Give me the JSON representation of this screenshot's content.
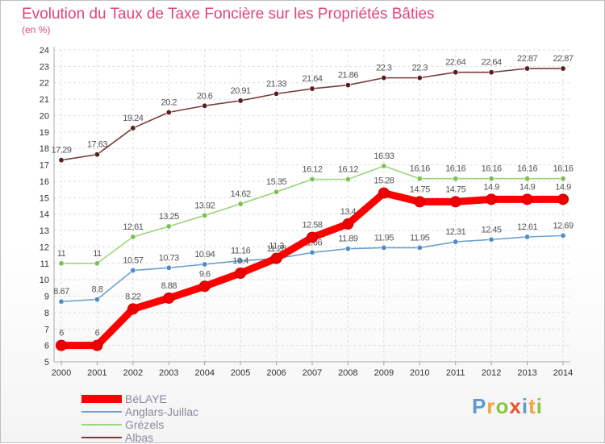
{
  "chart_data": {
    "type": "line",
    "title": "Evolution du Taux de Taxe Foncière sur les Propriétés Bâties",
    "subtitle": "(en %)",
    "ylim": [
      5,
      24
    ],
    "yticks": [
      "5",
      "6",
      "7",
      "8",
      "9",
      "10",
      "11",
      "12",
      "13",
      "14",
      "15",
      "16",
      "17",
      "18",
      "19",
      "20",
      "21",
      "22",
      "23",
      "24"
    ],
    "categories": [
      "2000",
      "2001",
      "2002",
      "2003",
      "2004",
      "2005",
      "2006",
      "2007",
      "2008",
      "2009",
      "2010",
      "2011",
      "2012",
      "2013",
      "2014"
    ],
    "grid": true,
    "legend_position": "bottom-left",
    "series": [
      {
        "name": "Albas",
        "color": "#7a3b3b",
        "marker": "#5a1e1e",
        "values": [
          17.29,
          17.63,
          19.24,
          20.2,
          20.6,
          20.91,
          21.33,
          21.64,
          21.86,
          22.3,
          22.3,
          22.64,
          22.64,
          22.87,
          22.87
        ],
        "labels": [
          "17.29",
          "17.63",
          "19.24",
          "20.2",
          "20.6",
          "20.91",
          "21.33",
          "21.64",
          "21.86",
          "22.3",
          "22.3",
          "22.64",
          "22.64",
          "22.87",
          "22.87"
        ]
      },
      {
        "name": "Grézels",
        "color": "#9ad57a",
        "marker": "#7cc24f",
        "values": [
          11,
          11,
          12.61,
          13.25,
          13.92,
          14.62,
          15.35,
          16.12,
          16.12,
          16.93,
          16.16,
          16.16,
          16.16,
          16.16,
          16.16
        ],
        "labels": [
          "11",
          "11",
          "12.61",
          "13.25",
          "13.92",
          "14.62",
          "15.35",
          "16.12",
          "16.12",
          "16.93",
          "16.16",
          "16.16",
          "16.16",
          "16.16",
          "16.16"
        ]
      },
      {
        "name": "Anglars-Juillac",
        "color": "#6ca0cf",
        "marker": "#4f8cc7",
        "values": [
          8.67,
          8.8,
          10.57,
          10.73,
          10.94,
          11.16,
          11.28,
          11.66,
          11.89,
          11.95,
          11.95,
          12.31,
          12.45,
          12.61,
          12.69
        ],
        "labels": [
          "8.67",
          "8.8",
          "10.57",
          "10.73",
          "10.94",
          "11.16",
          "11.28",
          "11.66",
          "11.89",
          "11.95",
          "11.95",
          "12.31",
          "12.45",
          "12.61",
          "12.69"
        ]
      },
      {
        "name": "BéLAYE",
        "color": "#ff0000",
        "marker": "#ee0000",
        "values": [
          6,
          6,
          8.22,
          8.88,
          9.6,
          10.4,
          11.3,
          12.58,
          13.4,
          15.28,
          14.75,
          14.75,
          14.9,
          14.9,
          14.9
        ],
        "labels": [
          "6",
          "6",
          "8.22",
          "8.88",
          "9.6",
          "10.4",
          "11.3",
          "12.58",
          "13.4",
          "15.28",
          "14.75",
          "14.75",
          "14.9",
          "14.9",
          "14.9"
        ]
      }
    ]
  },
  "legend": {
    "items": [
      {
        "label": "BéLAYE",
        "color": "#ff0000"
      },
      {
        "label": "Anglars-Juillac",
        "color": "#6ca0cf"
      },
      {
        "label": "Grézels",
        "color": "#9ad57a"
      },
      {
        "label": "Albas",
        "color": "#7a3b3b"
      }
    ]
  },
  "brand": {
    "letters": [
      "P",
      "r",
      "o",
      "x",
      "i",
      "t",
      "i"
    ],
    "colors": [
      "#5b9bd5",
      "#f2a23c",
      "#8cc63f",
      "#e8542f",
      "#5b9bd5",
      "#f2a23c",
      "#8cc63f"
    ]
  }
}
